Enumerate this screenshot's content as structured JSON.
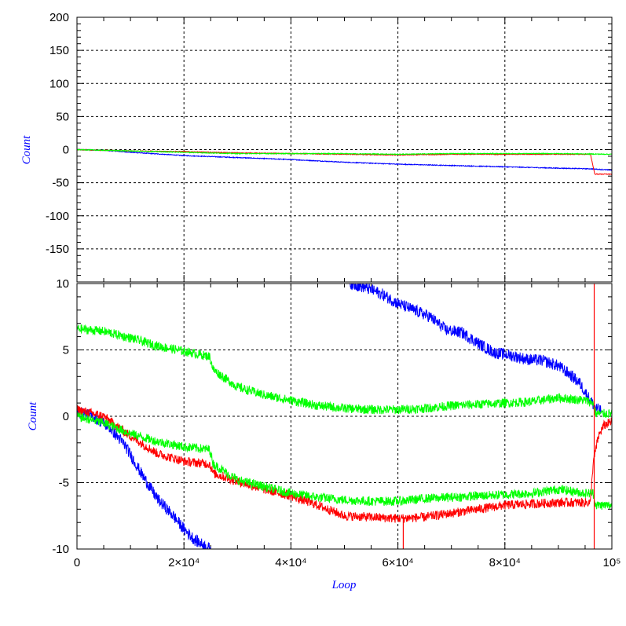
{
  "chart_data": [
    {
      "type": "line",
      "panel": "top",
      "ylabel": "Count",
      "xlabel": "",
      "xlim": [
        0,
        100000
      ],
      "ylim": [
        -200,
        200
      ],
      "yticks": [
        {
          "value": 200,
          "label": "200"
        },
        {
          "value": 150,
          "label": "150"
        },
        {
          "value": 100,
          "label": "100"
        },
        {
          "value": 50,
          "label": "50"
        },
        {
          "value": 0,
          "label": "0"
        },
        {
          "value": -50,
          "label": "-50"
        },
        {
          "value": -100,
          "label": "-100"
        },
        {
          "value": -150,
          "label": "-150"
        }
      ],
      "grid": true,
      "series": [
        {
          "color": "#0000ff",
          "x": [
            0,
            5000,
            10000,
            20000,
            30000,
            40000,
            50000,
            60000,
            70000,
            80000,
            90000,
            96000,
            100000
          ],
          "y": [
            0,
            -1,
            -4,
            -9,
            -12,
            -15,
            -19,
            -22,
            -24,
            -26,
            -28,
            -29,
            -31
          ]
        },
        {
          "color": "#ff0000",
          "x": [
            0,
            10000,
            20000,
            30000,
            40000,
            50000,
            60000,
            70000,
            80000,
            90000,
            96000,
            96800,
            100000
          ],
          "y": [
            0,
            -2,
            -3,
            -5,
            -6,
            -7,
            -8,
            -7,
            -7,
            -7,
            -7,
            -37,
            -37
          ]
        },
        {
          "color": "#00ff00",
          "x": [
            0,
            10000,
            20000,
            30000,
            40000,
            50000,
            60000,
            70000,
            80000,
            90000,
            100000
          ],
          "y": [
            0,
            -2,
            -4,
            -6,
            -6,
            -6,
            -7,
            -6,
            -6,
            -6,
            -7
          ]
        }
      ]
    },
    {
      "type": "line",
      "panel": "bottom",
      "ylabel": "Count",
      "xlabel": "Loop",
      "xlim": [
        0,
        100000
      ],
      "ylim": [
        -10,
        10
      ],
      "xticks": [
        {
          "value": 0,
          "label": "0"
        },
        {
          "value": 20000,
          "label": "2×10⁴"
        },
        {
          "value": 40000,
          "label": "4×10⁴"
        },
        {
          "value": 60000,
          "label": "6×10⁴"
        },
        {
          "value": 80000,
          "label": "8×10⁴"
        },
        {
          "value": 100000,
          "label": "10⁵"
        }
      ],
      "yticks": [
        {
          "value": 10,
          "label": "10"
        },
        {
          "value": 5,
          "label": "5"
        },
        {
          "value": 0,
          "label": "0"
        },
        {
          "value": -5,
          "label": "-5"
        },
        {
          "value": -10,
          "label": "-10"
        }
      ],
      "grid": true,
      "series": [
        {
          "color": "#0000ff",
          "x": [
            0,
            3000,
            6000,
            9000,
            12000,
            15000,
            18000,
            20000,
            22000,
            24000,
            25000
          ],
          "y": [
            0.3,
            0,
            -0.8,
            -2.2,
            -4.3,
            -6.2,
            -7.5,
            -8.5,
            -9.3,
            -9.8,
            -10
          ]
        },
        {
          "color": "#0000ff",
          "x": [
            51000,
            54000,
            57000,
            60000,
            63000,
            66000,
            69000,
            72000,
            75000,
            78000,
            81000,
            84000,
            87000,
            90000,
            92000,
            94000,
            95500,
            97000,
            98000
          ],
          "y": [
            10,
            9.7,
            9.2,
            8.5,
            8.0,
            7.5,
            6.5,
            6.3,
            5.5,
            4.8,
            4.6,
            4.3,
            4.2,
            3.8,
            3.2,
            2.5,
            1.5,
            0.6,
            0.4
          ]
        },
        {
          "color": "#ff0000",
          "x": [
            0,
            5000,
            10000,
            15000,
            20000,
            24800,
            25500,
            30000,
            35000,
            40000,
            45000,
            50000,
            55000,
            60000,
            65000,
            70000,
            75000,
            80000,
            85000,
            90000,
            96000,
            96500,
            97500,
            98500,
            100000
          ],
          "y": [
            0.5,
            0,
            -1.5,
            -2.8,
            -3.4,
            -3.6,
            -4.3,
            -4.9,
            -5.5,
            -6.0,
            -6.7,
            -7.5,
            -7.6,
            -7.7,
            -7.6,
            -7.3,
            -7.0,
            -6.7,
            -6.6,
            -6.5,
            -6.5,
            -3.5,
            -1.5,
            -0.7,
            -0.4
          ]
        },
        {
          "color": "#00ff00",
          "x": [
            0,
            5000,
            10000,
            15000,
            20000,
            24800,
            25500,
            30000,
            35000,
            40000,
            45000,
            50000,
            55000,
            60000,
            65000,
            70000,
            75000,
            80000,
            85000,
            90000,
            95000,
            96500,
            97000,
            100000
          ],
          "y": [
            6.6,
            6.4,
            5.9,
            5.3,
            4.9,
            4.5,
            3.5,
            2.2,
            1.6,
            1.2,
            0.8,
            0.6,
            0.5,
            0.5,
            0.6,
            0.8,
            0.9,
            1.0,
            1.1,
            1.4,
            1.2,
            1.0,
            0.2,
            0.2
          ]
        },
        {
          "color": "#00ff00",
          "x": [
            0,
            5000,
            10000,
            15000,
            20000,
            24800,
            25500,
            30000,
            35000,
            40000,
            45000,
            50000,
            55000,
            60000,
            65000,
            70000,
            75000,
            80000,
            85000,
            90000,
            95000,
            96500,
            97000,
            100000
          ],
          "y": [
            0,
            -0.5,
            -1.3,
            -1.9,
            -2.3,
            -2.5,
            -3.6,
            -4.8,
            -5.3,
            -5.8,
            -6.1,
            -6.3,
            -6.4,
            -6.4,
            -6.2,
            -6.1,
            -6.0,
            -5.9,
            -5.8,
            -5.5,
            -5.8,
            -5.8,
            -6.7,
            -6.7
          ]
        }
      ],
      "spikes": [
        {
          "color": "#ff0000",
          "x": 61000,
          "ymin": -10,
          "ymax": -7.5
        },
        {
          "color": "#ff0000",
          "x": 96700,
          "ymin": -10,
          "ymax": 10
        }
      ]
    }
  ]
}
